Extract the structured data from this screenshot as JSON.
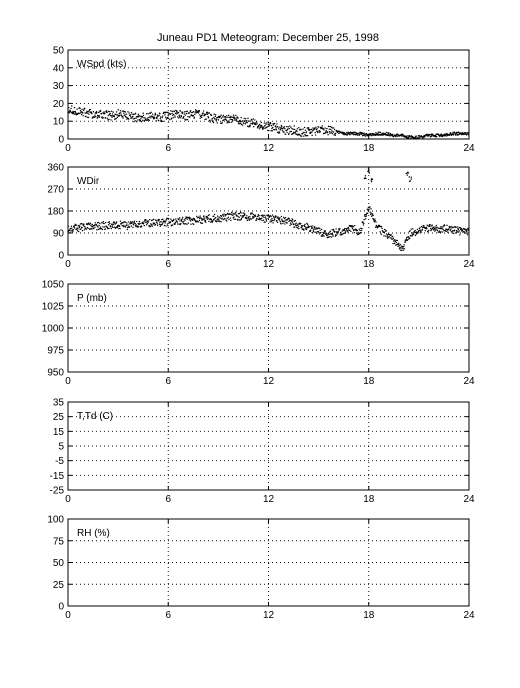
{
  "chart_data": {
    "type": "scatter",
    "title": "Juneau PD1 Meteogram:   December 25, 1998",
    "grid": true,
    "xlim": [
      0,
      24
    ],
    "x_ticks": [
      0,
      6,
      12,
      18,
      24
    ],
    "panels": [
      {
        "ylabel": "WSpd (kts)",
        "ylim": [
          0,
          50
        ],
        "y_ticks": [
          0,
          10,
          20,
          30,
          40,
          50
        ],
        "series": [
          {
            "x": [
              0,
              0.5,
              1,
              1.5,
              2,
              2.5,
              3,
              3.5,
              4,
              4.5,
              5,
              5.5,
              6,
              6.5,
              7,
              7.5,
              8,
              8.5,
              9,
              9.5,
              10,
              10.5,
              11,
              11.5,
              12,
              12.5,
              13,
              13.5,
              14,
              14.5,
              15,
              15.5,
              16,
              16.5,
              17,
              17.5,
              18,
              18.5,
              19,
              19.5,
              20,
              20.5,
              21,
              21.5,
              22,
              22.5,
              23,
              23.5,
              24
            ],
            "y": [
              17,
              16,
              15,
              14,
              14,
              13,
              14,
              13,
              12,
              12,
              13,
              12,
              13,
              14,
              13,
              14,
              14,
              12,
              11,
              11,
              11,
              10,
              9,
              8,
              7,
              6,
              5,
              5,
              4,
              4,
              5,
              5,
              4,
              3,
              3,
              3,
              2,
              3,
              3,
              2,
              2,
              1,
              1,
              2,
              2,
              2,
              3,
              3,
              3
            ]
          }
        ]
      },
      {
        "ylabel": "WDir",
        "ylim": [
          0,
          360
        ],
        "y_ticks": [
          0,
          90,
          180,
          270,
          360
        ],
        "series": [
          {
            "x": [
              0,
              0.5,
              1,
              1.5,
              2,
              2.5,
              3,
              3.5,
              4,
              4.5,
              5,
              5.5,
              6,
              6.5,
              7,
              7.5,
              8,
              8.5,
              9,
              9.5,
              10,
              10.5,
              11,
              11.5,
              12,
              12.5,
              13,
              13.5,
              14,
              14.5,
              15,
              15.5,
              16,
              16.5,
              17,
              17.5,
              18,
              18.5,
              19,
              19.5,
              20,
              20.5,
              21,
              21.5,
              22,
              22.5,
              23,
              23.5,
              24
            ],
            "y": [
              105,
              110,
              115,
              115,
              120,
              120,
              125,
              120,
              125,
              130,
              130,
              130,
              135,
              135,
              140,
              140,
              145,
              150,
              150,
              155,
              160,
              158,
              155,
              150,
              150,
              145,
              140,
              130,
              120,
              110,
              95,
              85,
              90,
              100,
              110,
              95,
              200,
              110,
              90,
              60,
              20,
              90,
              100,
              110,
              105,
              110,
              105,
              95,
              95
            ]
          },
          {
            "x": [
              17.8,
              18.0,
              18.2,
              20.3,
              20.5
            ],
            "y": [
              320,
              345,
              310,
              330,
              310
            ]
          }
        ]
      },
      {
        "ylabel": "P (mb)",
        "ylim": [
          950,
          1050
        ],
        "y_ticks": [
          950,
          975,
          1000,
          1025,
          1050
        ],
        "series": []
      },
      {
        "ylabel": "T,Td (C)",
        "ylim": [
          -25,
          35
        ],
        "y_ticks": [
          -25,
          -15,
          -5,
          5,
          15,
          25,
          35
        ],
        "series": []
      },
      {
        "ylabel": "RH (%)",
        "ylim": [
          0,
          100
        ],
        "y_ticks": [
          0,
          25,
          50,
          75,
          100
        ],
        "series": []
      }
    ]
  }
}
